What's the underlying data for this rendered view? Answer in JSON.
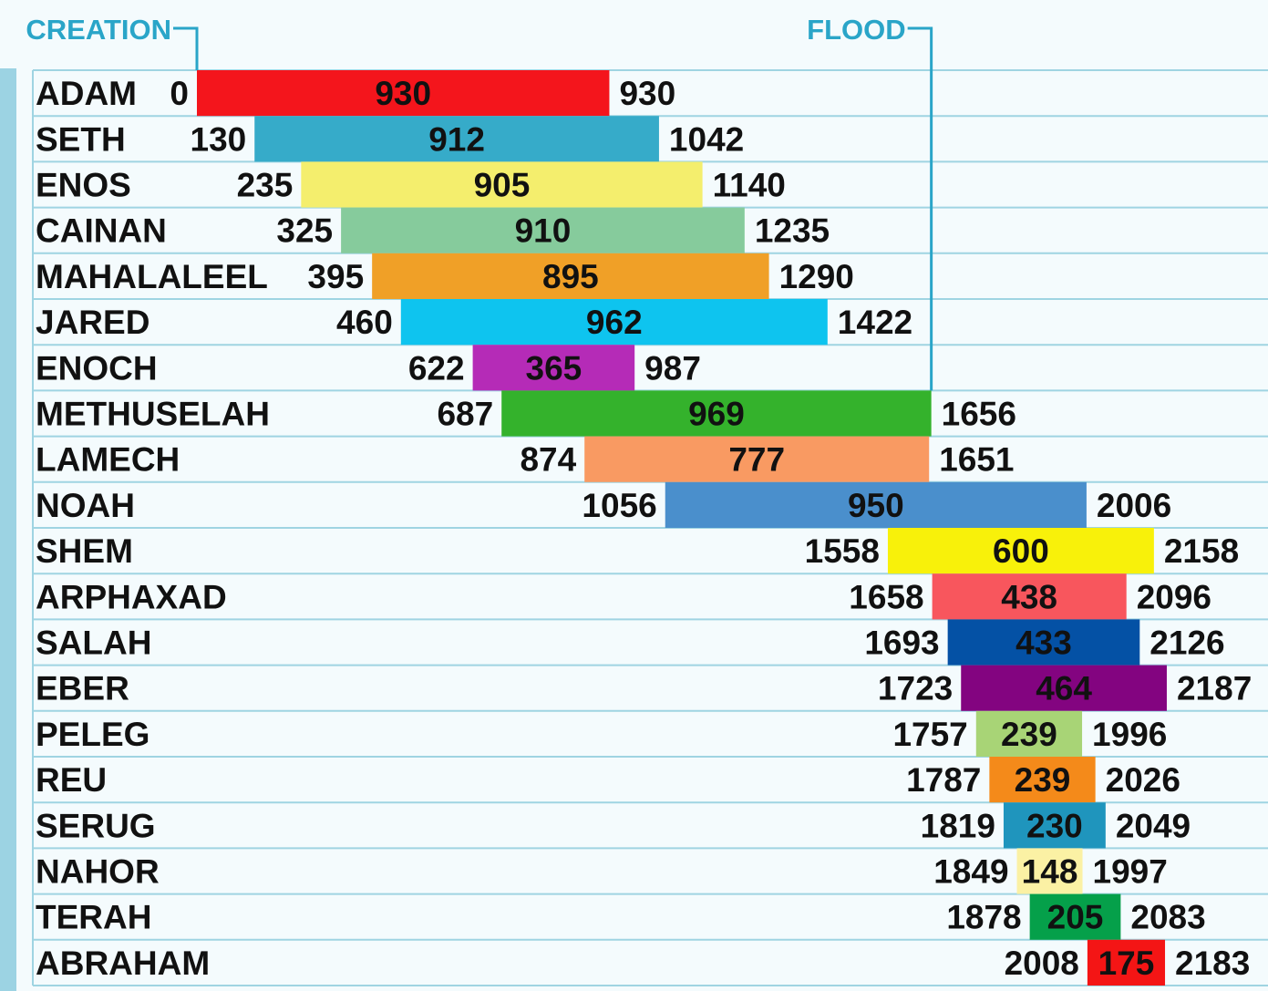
{
  "chart_data": {
    "type": "bar",
    "subtype": "floating-lifespan-timeline",
    "markers": [
      {
        "label": "CREATION",
        "year": 0
      },
      {
        "label": "FLOOD",
        "year": 1656
      }
    ],
    "series": [
      {
        "name": "ADAM",
        "start": 0,
        "length": 930,
        "end": 930,
        "color": "#f4151c"
      },
      {
        "name": "SETH",
        "start": 130,
        "length": 912,
        "end": 1042,
        "color": "#36abc9"
      },
      {
        "name": "ENOS",
        "start": 235,
        "length": 905,
        "end": 1140,
        "color": "#f4ee6d"
      },
      {
        "name": "CAINAN",
        "start": 325,
        "length": 910,
        "end": 1235,
        "color": "#86cb9c"
      },
      {
        "name": "MAHALALEEL",
        "start": 395,
        "length": 895,
        "end": 1290,
        "color": "#f0a027"
      },
      {
        "name": "JARED",
        "start": 460,
        "length": 962,
        "end": 1422,
        "color": "#0ec4ef"
      },
      {
        "name": "ENOCH",
        "start": 622,
        "length": 365,
        "end": 987,
        "color": "#b52bb7"
      },
      {
        "name": "METHUSELAH",
        "start": 687,
        "length": 969,
        "end": 1656,
        "color": "#34b22c"
      },
      {
        "name": "LAMECH",
        "start": 874,
        "length": 777,
        "end": 1651,
        "color": "#f99a62"
      },
      {
        "name": "NOAH",
        "start": 1056,
        "length": 950,
        "end": 2006,
        "color": "#4a8fcc"
      },
      {
        "name": "SHEM",
        "start": 1558,
        "length": 600,
        "end": 2158,
        "color": "#f8f10a"
      },
      {
        "name": "ARPHAXAD",
        "start": 1658,
        "length": 438,
        "end": 2096,
        "color": "#f8565d"
      },
      {
        "name": "SALAH",
        "start": 1693,
        "length": 433,
        "end": 2126,
        "color": "#0451a5"
      },
      {
        "name": "EBER",
        "start": 1723,
        "length": 464,
        "end": 2187,
        "color": "#830480"
      },
      {
        "name": "PELEG",
        "start": 1757,
        "length": 239,
        "end": 1996,
        "color": "#a8d476"
      },
      {
        "name": "REU",
        "start": 1787,
        "length": 239,
        "end": 2026,
        "color": "#f48a1a"
      },
      {
        "name": "SERUG",
        "start": 1819,
        "length": 230,
        "end": 2049,
        "color": "#1f95bd"
      },
      {
        "name": "NAHOR",
        "start": 1849,
        "length": 148,
        "end": 1997,
        "color": "#fbf1a4"
      },
      {
        "name": "TERAH",
        "start": 1878,
        "length": 205,
        "end": 2083,
        "color": "#05a04a"
      },
      {
        "name": "ABRAHAM",
        "start": 2008,
        "length": 175,
        "end": 2183,
        "color": "#f41515"
      }
    ]
  }
}
